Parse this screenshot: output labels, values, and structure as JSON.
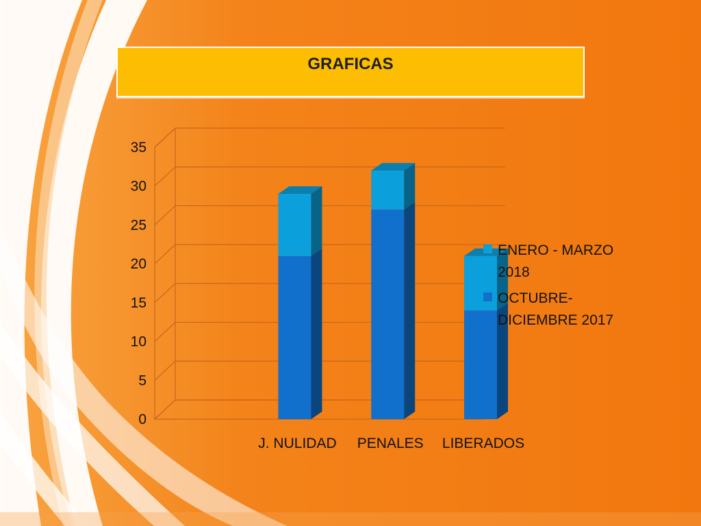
{
  "slide": {
    "title": "GRAFICAS",
    "colors": {
      "background": "#f3790f",
      "title_box": "#fcbd02"
    }
  },
  "chart_data": {
    "type": "bar",
    "stacked": true,
    "three_d": true,
    "categories": [
      "J. NULIDAD",
      "PENALES",
      "LIBERADOS"
    ],
    "series": [
      {
        "name": "OCTUBRE-DICIEMBRE 2017",
        "values": [
          21,
          27,
          14
        ],
        "color": "#1070cc"
      },
      {
        "name": "ENERO - MARZO 2018",
        "values": [
          8,
          5,
          7
        ],
        "color": "#0ba0dc"
      }
    ],
    "ylim": [
      0,
      35
    ],
    "yticks": [
      0,
      5,
      10,
      15,
      20,
      25,
      30,
      35
    ],
    "grid": true,
    "legend_position": "right",
    "legend": [
      {
        "series": 1,
        "lines": [
          "ENERO - MARZO",
          "2018"
        ]
      },
      {
        "series": 0,
        "lines": [
          "OCTUBRE-",
          "DICIEMBRE 2017"
        ]
      }
    ]
  }
}
